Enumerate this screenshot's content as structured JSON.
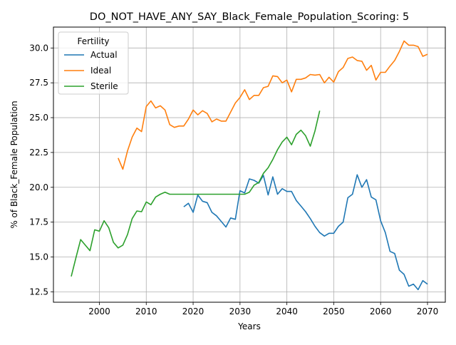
{
  "chart_data": {
    "type": "line",
    "title": "DO_NOT_HAVE_ANY_SAY_Black_Female_Population_Scoring: 5",
    "xlabel": "Years",
    "ylabel": "% of Black_Female Population",
    "xlim": [
      1990.2,
      2073.8
    ],
    "ylim": [
      11.75,
      31.5
    ],
    "xticks": [
      2000,
      2010,
      2020,
      2030,
      2040,
      2050,
      2060,
      2070
    ],
    "yticks": [
      12.5,
      15.0,
      17.5,
      20.0,
      22.5,
      25.0,
      27.5,
      30.0
    ],
    "ytick_labels": [
      "12.5",
      "15.0",
      "17.5",
      "20.0",
      "22.5",
      "25.0",
      "27.5",
      "30.0"
    ],
    "grid": true,
    "legend": {
      "title": "Fertility",
      "placement": "top-left"
    },
    "series": [
      {
        "name": "Actual",
        "color": "#1f77b4",
        "x": [
          2018,
          2019,
          2020,
          2021,
          2022,
          2023,
          2024,
          2025,
          2026,
          2027,
          2028,
          2029,
          2030,
          2031,
          2032,
          2033,
          2034,
          2035,
          2036,
          2037,
          2038,
          2039,
          2040,
          2041,
          2042,
          2043,
          2044,
          2045,
          2046,
          2047,
          2048,
          2049,
          2050,
          2051,
          2052,
          2053,
          2054,
          2055,
          2056,
          2057,
          2058,
          2059,
          2060,
          2061,
          2062,
          2063,
          2064,
          2065,
          2066,
          2067,
          2068,
          2069,
          2070
        ],
        "y": [
          18.6,
          18.85,
          18.2,
          19.45,
          19.0,
          18.9,
          18.2,
          17.95,
          17.55,
          17.15,
          17.8,
          17.7,
          19.75,
          19.6,
          20.6,
          20.5,
          20.3,
          20.85,
          19.45,
          20.75,
          19.5,
          19.9,
          19.7,
          19.7,
          19.05,
          18.65,
          18.25,
          17.75,
          17.2,
          16.75,
          16.5,
          16.7,
          16.7,
          17.2,
          17.5,
          19.25,
          19.5,
          20.9,
          20.0,
          20.55,
          19.3,
          19.1,
          17.6,
          16.75,
          15.4,
          15.25,
          14.05,
          13.75,
          12.9,
          13.05,
          12.65,
          13.3,
          13.05
        ]
      },
      {
        "name": "Ideal",
        "color": "#ff7f0e",
        "x": [
          2004,
          2005,
          2006,
          2007,
          2008,
          2009,
          2010,
          2011,
          2012,
          2013,
          2014,
          2015,
          2016,
          2017,
          2018,
          2019,
          2020,
          2021,
          2022,
          2023,
          2024,
          2025,
          2026,
          2027,
          2028,
          2029,
          2030,
          2031,
          2032,
          2033,
          2034,
          2035,
          2036,
          2037,
          2038,
          2039,
          2040,
          2041,
          2042,
          2043,
          2044,
          2045,
          2046,
          2047,
          2048,
          2049,
          2050,
          2051,
          2052,
          2053,
          2054,
          2055,
          2056,
          2057,
          2058,
          2059,
          2060,
          2061,
          2062,
          2063,
          2064,
          2065,
          2066,
          2067,
          2068,
          2069,
          2070
        ],
        "y": [
          22.1,
          21.3,
          22.6,
          23.6,
          24.25,
          24.0,
          25.8,
          26.2,
          25.7,
          25.85,
          25.55,
          24.5,
          24.3,
          24.4,
          24.4,
          24.9,
          25.55,
          25.2,
          25.5,
          25.3,
          24.7,
          24.9,
          24.75,
          24.75,
          25.4,
          26.05,
          26.45,
          27.0,
          26.3,
          26.6,
          26.6,
          27.15,
          27.25,
          28.0,
          27.95,
          27.5,
          27.7,
          26.85,
          27.75,
          27.75,
          27.85,
          28.1,
          28.05,
          28.1,
          27.5,
          27.9,
          27.55,
          28.3,
          28.6,
          29.25,
          29.35,
          29.1,
          29.05,
          28.4,
          28.75,
          27.7,
          28.25,
          28.25,
          28.7,
          29.1,
          29.75,
          30.5,
          30.2,
          30.2,
          30.1,
          29.4,
          29.55
        ]
      },
      {
        "name": "Sterile",
        "color": "#2ca02c",
        "x": [
          1994,
          1995,
          1996,
          1997,
          1998,
          1999,
          2000,
          2001,
          2002,
          2003,
          2004,
          2005,
          2006,
          2007,
          2008,
          2009,
          2010,
          2011,
          2012,
          2013,
          2014,
          2015,
          2016,
          2017,
          2018,
          2019,
          2020,
          2021,
          2022,
          2023,
          2024,
          2025,
          2026,
          2027,
          2028,
          2029,
          2030,
          2031,
          2032,
          2033,
          2034,
          2035,
          2036,
          2037,
          2038,
          2039,
          2040,
          2041,
          2042,
          2043,
          2044,
          2045,
          2046,
          2047
        ],
        "y": [
          13.6,
          14.95,
          16.25,
          15.85,
          15.45,
          16.95,
          16.85,
          17.6,
          17.1,
          16.05,
          15.65,
          15.85,
          16.6,
          17.75,
          18.3,
          18.25,
          18.95,
          18.75,
          19.3,
          19.5,
          19.65,
          19.5,
          19.5,
          19.5,
          19.5,
          19.5,
          19.5,
          19.5,
          19.5,
          19.5,
          19.5,
          19.5,
          19.5,
          19.5,
          19.5,
          19.5,
          19.5,
          19.5,
          19.65,
          20.15,
          20.35,
          21.0,
          21.4,
          22.0,
          22.7,
          23.25,
          23.6,
          23.05,
          23.8,
          24.1,
          23.7,
          22.95,
          24.05,
          25.5
        ]
      }
    ]
  }
}
